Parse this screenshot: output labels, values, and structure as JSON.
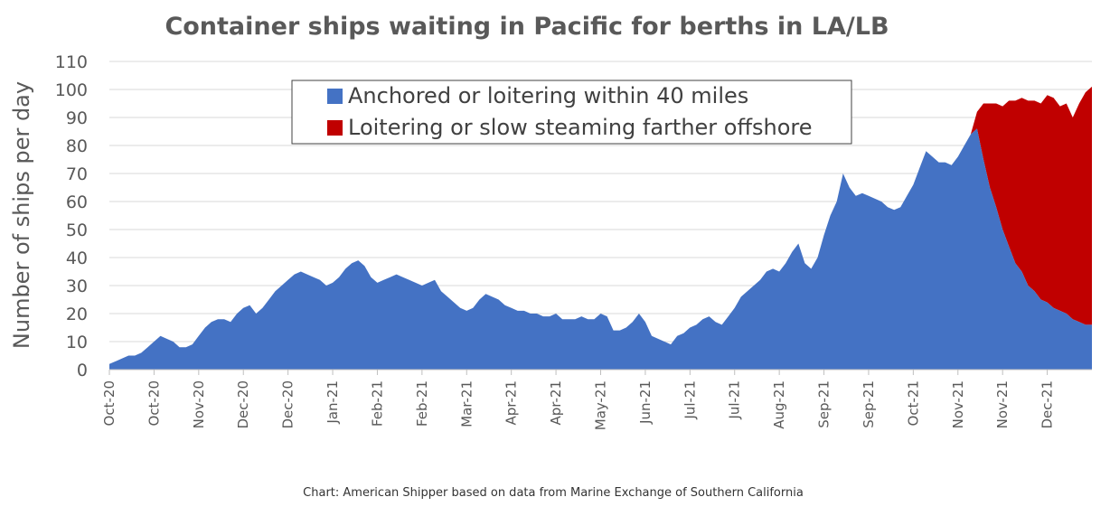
{
  "chart_data": {
    "type": "area",
    "title": "Container ships waiting in Pacific for berths in LA/LB",
    "ylabel": "Number of ships per day",
    "xlabel": "",
    "ylim": [
      0,
      110
    ],
    "yticks": [
      0,
      10,
      20,
      30,
      40,
      50,
      60,
      70,
      80,
      90,
      100,
      110
    ],
    "grid": true,
    "legend_position": "top",
    "x_tick_labels": [
      "Oct-20",
      "Oct-20",
      "Nov-20",
      "Dec-20",
      "Dec-20",
      "Jan-21",
      "Feb-21",
      "Feb-21",
      "Mar-21",
      "Apr-21",
      "Apr-21",
      "May-21",
      "Jun-21",
      "Jul-21",
      "Jul-21",
      "Aug-21",
      "Sep-21",
      "Sep-21",
      "Oct-21",
      "Nov-21",
      "Nov-21",
      "Dec-21"
    ],
    "x_tick_weeks": [
      0,
      7,
      14,
      21,
      28,
      35,
      42,
      49,
      56,
      63,
      70,
      77,
      84,
      91,
      98,
      105,
      112,
      119,
      126,
      133,
      140,
      147
    ],
    "x": [
      0,
      1,
      2,
      3,
      4,
      5,
      6,
      7,
      8,
      9,
      10,
      11,
      12,
      13,
      14,
      15,
      16,
      17,
      18,
      19,
      20,
      21,
      22,
      23,
      24,
      25,
      26,
      27,
      28,
      29,
      30,
      31,
      32,
      33,
      34,
      35,
      36,
      37,
      38,
      39,
      40,
      41,
      42,
      43,
      44,
      45,
      46,
      47,
      48,
      49,
      50,
      51,
      52,
      53,
      54,
      55,
      56,
      57,
      58,
      59,
      60,
      61,
      62,
      63,
      64,
      65,
      66,
      67,
      68,
      69,
      70,
      71,
      72,
      73,
      74,
      75,
      76,
      77,
      78,
      79,
      80,
      81,
      82,
      83,
      84,
      85,
      86,
      87,
      88,
      89,
      90,
      91,
      92,
      93,
      94,
      95,
      96,
      97,
      98,
      99,
      100,
      101,
      102,
      103,
      104,
      105,
      106,
      107,
      108,
      109,
      110,
      111,
      112,
      113,
      114,
      115,
      116,
      117,
      118,
      119,
      120,
      121,
      122,
      123,
      124,
      125,
      126,
      127,
      128,
      129,
      130,
      131,
      132,
      133,
      134,
      135,
      136,
      137,
      138,
      139,
      140,
      141,
      142,
      143,
      144,
      145,
      146,
      147,
      148,
      149,
      150,
      151,
      152,
      153,
      154
    ],
    "series": [
      {
        "name": "Anchored or loitering within 40 miles",
        "color": "#4472c4",
        "values": [
          2,
          3,
          4,
          5,
          5,
          6,
          8,
          10,
          12,
          11,
          10,
          8,
          8,
          9,
          12,
          15,
          17,
          18,
          18,
          17,
          20,
          22,
          23,
          20,
          22,
          25,
          28,
          30,
          32,
          34,
          35,
          34,
          33,
          32,
          30,
          31,
          33,
          36,
          38,
          39,
          37,
          33,
          31,
          32,
          33,
          34,
          33,
          32,
          31,
          30,
          31,
          32,
          28,
          26,
          24,
          22,
          21,
          22,
          25,
          27,
          26,
          25,
          23,
          22,
          21,
          21,
          20,
          20,
          19,
          19,
          20,
          18,
          18,
          18,
          19,
          18,
          18,
          20,
          19,
          14,
          14,
          15,
          17,
          20,
          17,
          12,
          11,
          10,
          9,
          12,
          13,
          15,
          16,
          18,
          19,
          17,
          16,
          19,
          22,
          26,
          28,
          30,
          32,
          35,
          36,
          35,
          38,
          42,
          45,
          38,
          36,
          40,
          48,
          55,
          60,
          70,
          65,
          62,
          63,
          62,
          61,
          60,
          58,
          57,
          58,
          62,
          66,
          72,
          78,
          76,
          74,
          74,
          73,
          76,
          80,
          84,
          86,
          75,
          65,
          58,
          50,
          44,
          38,
          35,
          30,
          28,
          25,
          24,
          22,
          21,
          20,
          18,
          17,
          16,
          16
        ]
      },
      {
        "name": "Loitering or slow steaming farther offshore",
        "color": "#c00000",
        "values": [
          0,
          0,
          0,
          0,
          0,
          0,
          0,
          0,
          0,
          0,
          0,
          0,
          0,
          0,
          0,
          0,
          0,
          0,
          0,
          0,
          0,
          0,
          0,
          0,
          0,
          0,
          0,
          0,
          0,
          0,
          0,
          0,
          0,
          0,
          0,
          0,
          0,
          0,
          0,
          0,
          0,
          0,
          0,
          0,
          0,
          0,
          0,
          0,
          0,
          0,
          0,
          0,
          0,
          0,
          0,
          0,
          0,
          0,
          0,
          0,
          0,
          0,
          0,
          0,
          0,
          0,
          0,
          0,
          0,
          0,
          0,
          0,
          0,
          0,
          0,
          0,
          0,
          0,
          0,
          0,
          0,
          0,
          0,
          0,
          0,
          0,
          0,
          0,
          0,
          0,
          0,
          0,
          0,
          0,
          0,
          0,
          0,
          0,
          0,
          0,
          0,
          0,
          0,
          0,
          0,
          0,
          0,
          0,
          0,
          0,
          0,
          0,
          0,
          0,
          0,
          0,
          0,
          0,
          0,
          0,
          0,
          0,
          0,
          0,
          0,
          0,
          0,
          0,
          0,
          0,
          0,
          0,
          0,
          0,
          0,
          0,
          6,
          20,
          30,
          37,
          44,
          52,
          58,
          62,
          66,
          68,
          70,
          74,
          75,
          73,
          75,
          72,
          78,
          83,
          85
        ]
      }
    ],
    "caption": "Chart: American Shipper based on data from Marine Exchange of Southern California"
  },
  "colors": {
    "anchored": "#4472c4",
    "offshore": "#c00000",
    "text": "#595959",
    "grid": "#d9d9d9"
  }
}
